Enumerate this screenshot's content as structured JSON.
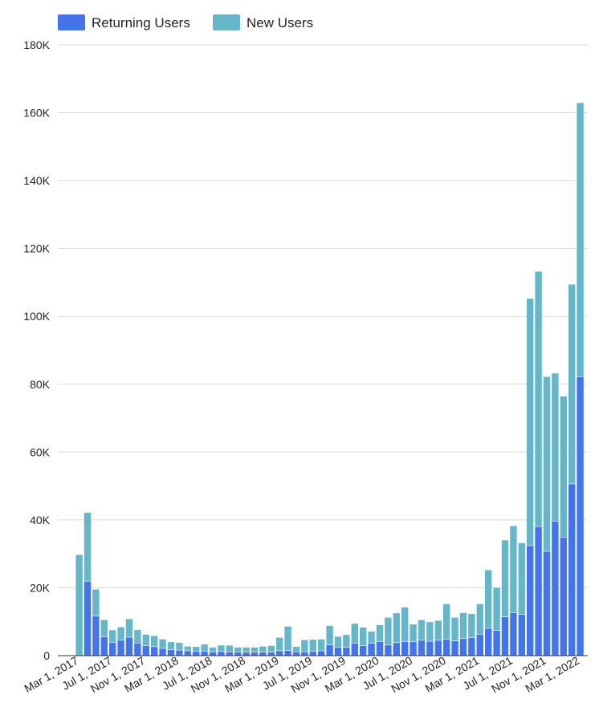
{
  "chart_data": {
    "type": "bar",
    "stacked": true,
    "series": [
      {
        "name": "Returning Users",
        "color": "#4374ec",
        "values": [
          0,
          22000,
          11700,
          5600,
          4000,
          4600,
          5500,
          3800,
          3000,
          2700,
          2200,
          1800,
          1700,
          1500,
          1400,
          1400,
          1200,
          1300,
          1200,
          1100,
          1100,
          1100,
          1100,
          1100,
          1500,
          1600,
          1200,
          1200,
          1300,
          1500,
          3200,
          2600,
          2500,
          3700,
          3000,
          3700,
          4200,
          3200,
          3900,
          4200,
          4200,
          4600,
          4300,
          4600,
          4900,
          4400,
          5100,
          5400,
          6400,
          8100,
          7500,
          11500,
          12700,
          12200,
          32500,
          38100,
          30800,
          39700,
          35000,
          50700,
          82300
        ]
      },
      {
        "name": "New Users",
        "color": "#66b6c9",
        "values": [
          29700,
          20100,
          7800,
          4900,
          3500,
          3800,
          5300,
          3800,
          3200,
          3100,
          2600,
          2200,
          2100,
          1200,
          1200,
          1900,
          1200,
          1700,
          1800,
          1300,
          1300,
          1300,
          1600,
          1800,
          3800,
          7000,
          1400,
          3400,
          3400,
          3300,
          5600,
          3000,
          3600,
          5700,
          5300,
          3400,
          4800,
          8000,
          8600,
          10000,
          5000,
          5900,
          5600,
          5700,
          10300,
          6800,
          7500,
          6900,
          8800,
          17100,
          12500,
          22500,
          25500,
          21000,
          72700,
          75100,
          51400,
          43500,
          41400,
          58700,
          80600
        ]
      }
    ],
    "categories": [
      "Mar 2017",
      "Apr 2017",
      "May 2017",
      "Jun 2017",
      "Jul 2017",
      "Aug 2017",
      "Sep 2017",
      "Oct 2017",
      "Nov 2017",
      "Dec 2017",
      "Jan 2018",
      "Feb 2018",
      "Mar 2018",
      "Apr 2018",
      "May 2018",
      "Jun 2018",
      "Jul 2018",
      "Aug 2018",
      "Sep 2018",
      "Oct 2018",
      "Nov 2018",
      "Dec 2018",
      "Jan 2019",
      "Feb 2019",
      "Mar 2019",
      "Apr 2019",
      "May 2019",
      "Jun 2019",
      "Jul 2019",
      "Aug 2019",
      "Sep 2019",
      "Oct 2019",
      "Nov 2019",
      "Dec 2019",
      "Jan 2020",
      "Feb 2020",
      "Mar 2020",
      "Apr 2020",
      "May 2020",
      "Jun 2020",
      "Jul 2020",
      "Aug 2020",
      "Sep 2020",
      "Oct 2020",
      "Nov 2020",
      "Dec 2020",
      "Jan 2021",
      "Feb 2021",
      "Mar 2021",
      "Apr 2021",
      "May 2021",
      "Jun 2021",
      "Jul 2021",
      "Aug 2021",
      "Sep 2021",
      "Oct 2021",
      "Nov 2021",
      "Dec 2021",
      "Jan 2022",
      "Feb 2022",
      "Mar 2022"
    ],
    "x_tick_labels": [
      "Mar 1, 2017",
      "Jul 1, 2017",
      "Nov 1, 2017",
      "Mar 1, 2018",
      "Jul 1, 2018",
      "Nov 1, 2018",
      "Mar 1, 2019",
      "Jul 1, 2019",
      "Nov 1, 2019",
      "Mar 1, 2020",
      "Jul 1, 2020",
      "Nov 1, 2020",
      "Mar 1, 2021",
      "Jul 1, 2021",
      "Nov 1, 2021",
      "Mar 1, 2022"
    ],
    "y_tick_labels": [
      "0",
      "20K",
      "40K",
      "60K",
      "80K",
      "100K",
      "120K",
      "140K",
      "160K",
      "180K"
    ],
    "ylim": [
      0,
      180000
    ],
    "y_step": 20000,
    "grid": true,
    "legend_position": "top-left",
    "title": "",
    "xlabel": "",
    "ylabel": ""
  }
}
